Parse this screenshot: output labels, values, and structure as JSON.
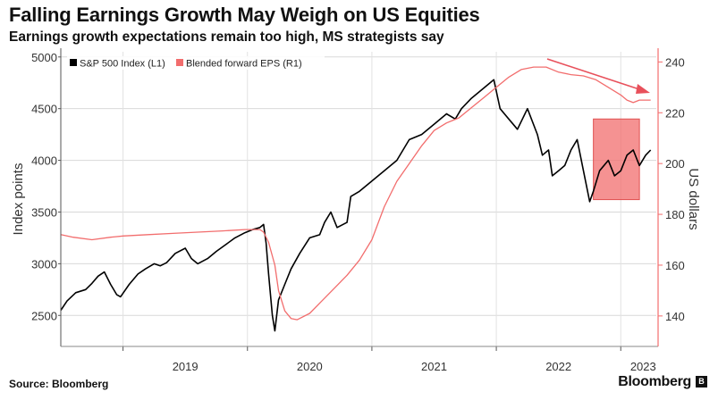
{
  "header": {
    "title": "Falling Earnings Growth May Weigh on US Equities",
    "subtitle": "Earnings growth expectations remain too high, MS strategists say"
  },
  "footer": {
    "source": "Source: Bloomberg",
    "brand": "Bloomberg",
    "brand_icon": "B"
  },
  "chart_data": {
    "type": "line",
    "title": "Falling Earnings Growth May Weigh on US Equities",
    "subtitle": "Earnings growth expectations remain too high, MS strategists say",
    "xlabel": "",
    "ylabel_left": "Index points",
    "ylabel_right": "US dollars",
    "x_ticks": [
      "2019",
      "2020",
      "2021",
      "2022",
      "2023"
    ],
    "x_tick_pos": [
      2019,
      2020,
      2021,
      2022,
      2023
    ],
    "xlim": [
      2018.5,
      2023.3
    ],
    "ylim_left": [
      2200,
      5050
    ],
    "ylim_right": [
      128,
      244
    ],
    "y_ticks_left": [
      2500,
      3000,
      3500,
      4000,
      4500,
      5000
    ],
    "y_ticks_right": [
      140,
      160,
      180,
      200,
      220,
      240
    ],
    "y_tick_labels_left": [
      "2500",
      "3000",
      "3500",
      "4000",
      "4500",
      "5000"
    ],
    "y_tick_labels_right": [
      "140",
      "160",
      "180",
      "200",
      "220",
      "240"
    ],
    "grid": true,
    "legend_position": "top-left",
    "series": [
      {
        "name": "S&P 500 Index (L1)",
        "axis": "left",
        "color": "#000000",
        "x": [
          2018.5,
          2018.55,
          2018.62,
          2018.7,
          2018.75,
          2018.8,
          2018.85,
          2018.9,
          2018.95,
          2018.98,
          2019.05,
          2019.12,
          2019.18,
          2019.25,
          2019.3,
          2019.35,
          2019.42,
          2019.5,
          2019.55,
          2019.6,
          2019.68,
          2019.75,
          2019.82,
          2019.9,
          2019.98,
          2020.04,
          2020.1,
          2020.13,
          2020.15,
          2020.17,
          2020.2,
          2020.22,
          2020.25,
          2020.3,
          2020.35,
          2020.42,
          2020.5,
          2020.58,
          2020.62,
          2020.67,
          2020.72,
          2020.8,
          2020.83,
          2020.9,
          2021.0,
          2021.1,
          2021.2,
          2021.3,
          2021.4,
          2021.5,
          2021.6,
          2021.67,
          2021.72,
          2021.8,
          2021.9,
          2021.98,
          2022.03,
          2022.1,
          2022.17,
          2022.25,
          2022.33,
          2022.37,
          2022.42,
          2022.45,
          2022.5,
          2022.55,
          2022.6,
          2022.65,
          2022.7,
          2022.75,
          2022.78,
          2022.83,
          2022.9,
          2022.95,
          2023.0,
          2023.05,
          2023.1,
          2023.15,
          2023.2,
          2023.24
        ],
        "values": [
          2550,
          2640,
          2720,
          2750,
          2810,
          2880,
          2920,
          2800,
          2700,
          2680,
          2800,
          2900,
          2950,
          3000,
          2980,
          3010,
          3100,
          3150,
          3050,
          3000,
          3050,
          3120,
          3180,
          3250,
          3300,
          3330,
          3350,
          3380,
          3200,
          2900,
          2500,
          2350,
          2650,
          2800,
          2950,
          3100,
          3250,
          3280,
          3400,
          3500,
          3350,
          3400,
          3650,
          3700,
          3800,
          3900,
          4000,
          4200,
          4250,
          4350,
          4450,
          4400,
          4500,
          4600,
          4700,
          4780,
          4500,
          4400,
          4300,
          4500,
          4250,
          4050,
          4100,
          3850,
          3900,
          3950,
          4100,
          4200,
          3900,
          3600,
          3700,
          3900,
          4000,
          3850,
          3900,
          4050,
          4100,
          3950,
          4050,
          4100
        ]
      },
      {
        "name": "Blended forward EPS (R1)",
        "axis": "right",
        "color": "#f26d6d",
        "x": [
          2018.5,
          2018.6,
          2018.75,
          2018.9,
          2019.0,
          2019.2,
          2019.4,
          2019.6,
          2019.8,
          2019.98,
          2020.05,
          2020.1,
          2020.13,
          2020.17,
          2020.22,
          2020.25,
          2020.3,
          2020.35,
          2020.4,
          2020.5,
          2020.6,
          2020.7,
          2020.8,
          2020.9,
          2021.0,
          2021.1,
          2021.2,
          2021.3,
          2021.4,
          2021.5,
          2021.6,
          2021.7,
          2021.8,
          2021.9,
          2022.0,
          2022.1,
          2022.2,
          2022.3,
          2022.4,
          2022.5,
          2022.6,
          2022.7,
          2022.8,
          2022.9,
          2023.0,
          2023.05,
          2023.1,
          2023.15,
          2023.2,
          2023.24
        ],
        "values": [
          172,
          171,
          170,
          171,
          171.5,
          172,
          172.5,
          173,
          173.5,
          174,
          174,
          174,
          173,
          169,
          160,
          150,
          142,
          139,
          138.5,
          141,
          146,
          151,
          156,
          162,
          170,
          183,
          193,
          200,
          207,
          213,
          216,
          218,
          222,
          226,
          230,
          234,
          237,
          238,
          238,
          236,
          235,
          234.5,
          233,
          230,
          227,
          225,
          224,
          225,
          225,
          225
        ]
      }
    ],
    "annotations": [
      {
        "type": "arrow",
        "color": "#e8505b",
        "description": "downward trend arrow"
      },
      {
        "type": "highlight_box",
        "color": "#f26d6d",
        "x_range": [
          2022.78,
          2023.15
        ],
        "y_range_left": [
          3620,
          4400
        ]
      }
    ]
  }
}
